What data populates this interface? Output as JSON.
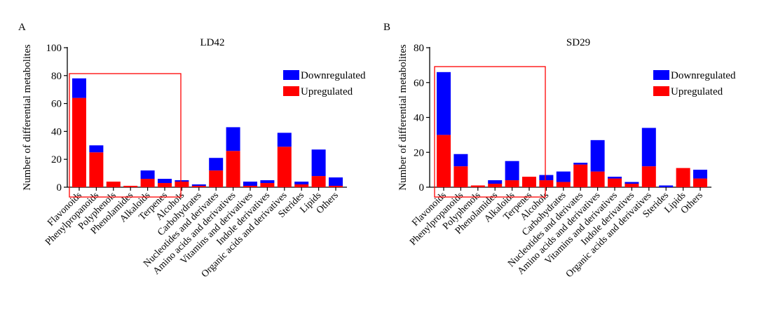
{
  "chart_data": [
    {
      "type": "bar",
      "stacked": true,
      "panel_label": "A",
      "title": "LD42",
      "ylabel": "Number of differential metabolites",
      "xlabel": "",
      "ylim": [
        0,
        100
      ],
      "yticks": [
        0,
        20,
        40,
        60,
        80,
        100
      ],
      "categories": [
        "Flavonoids",
        "Phenylpropanoids",
        "Polyphenols",
        "Phenolamides",
        "Alkaloids",
        "Terpenes",
        "Alcohols",
        "Carbohydrates",
        "Nucleotides and derivates",
        "Amino acids and derivatives",
        "Vitamins and derivatives",
        "Indole derivatives",
        "Organic acids and derivatives",
        "Sterides",
        "Lipids",
        "Others"
      ],
      "series": [
        {
          "name": "Upregulated",
          "color": "#ff0000",
          "values": [
            64,
            25,
            4,
            1,
            6,
            3,
            4,
            1,
            12,
            26,
            1,
            3,
            29,
            2,
            8,
            1
          ]
        },
        {
          "name": "Downregulated",
          "color": "#0000ff",
          "values": [
            14,
            5,
            0,
            0,
            6,
            3,
            1,
            1,
            9,
            17,
            3,
            2,
            10,
            2,
            19,
            6
          ]
        }
      ],
      "legend": [
        "Downregulated",
        "Upregulated"
      ],
      "legend_position": "top-right",
      "highlight": {
        "from": "Flavonoids",
        "to": "Terpenes",
        "color": "#ff0000"
      }
    },
    {
      "type": "bar",
      "stacked": true,
      "panel_label": "B",
      "title": "SD29",
      "ylabel": "Number of differential metabolites",
      "xlabel": "",
      "ylim": [
        0,
        80
      ],
      "yticks": [
        0,
        20,
        40,
        60,
        80
      ],
      "categories": [
        "Flavonoids",
        "Phenylpropanoids",
        "Polyphenols",
        "Phenolamides",
        "Alkaloids",
        "Terpenes",
        "Alcohols",
        "Carbohydrates",
        "Nucleotides and derivates",
        "Amino acids and derivatives",
        "Vitamins and derivatives",
        "Indole derivatives",
        "Organic acids and derivatives",
        "Sterides",
        "Lipids",
        "Others"
      ],
      "series": [
        {
          "name": "Upregulated",
          "color": "#ff0000",
          "values": [
            30,
            12,
            1,
            2,
            4,
            6,
            4,
            3,
            13,
            9,
            5,
            2,
            12,
            0,
            11,
            5
          ]
        },
        {
          "name": "Downregulated",
          "color": "#0000ff",
          "values": [
            36,
            7,
            0,
            2,
            11,
            0,
            3,
            6,
            1,
            18,
            1,
            1,
            22,
            1,
            0,
            5
          ]
        }
      ],
      "legend": [
        "Downregulated",
        "Upregulated"
      ],
      "legend_position": "top-right",
      "highlight": {
        "from": "Flavonoids",
        "to": "Terpenes",
        "color": "#ff0000"
      }
    }
  ]
}
